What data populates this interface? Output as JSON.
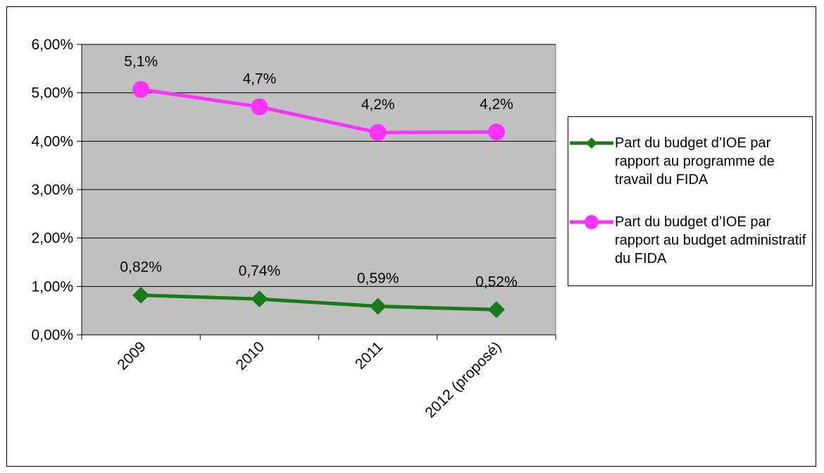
{
  "chart_data": {
    "type": "line",
    "categories": [
      "2009",
      "2010",
      "2011",
      "2012 (proposé)"
    ],
    "y_ticks": [
      "0,00%",
      "1,00%",
      "2,00%",
      "3,00%",
      "4,00%",
      "5,00%",
      "6,00%"
    ],
    "ylim": [
      0,
      6
    ],
    "grid": true,
    "legend_position": "right",
    "plot_background": "#c0c0c0",
    "series": [
      {
        "name": "Part du budget d’IOE par rapport au programme de travail du FIDA",
        "values": [
          0.82,
          0.74,
          0.59,
          0.52
        ],
        "labels": [
          "0,82%",
          "0,74%",
          "0,59%",
          "0,52%"
        ],
        "color": "#1a7a1a",
        "marker": "diamond"
      },
      {
        "name": "Part du budget d’IOE par rapport au budget administratif du FIDA",
        "values": [
          5.07,
          4.71,
          4.18,
          4.19
        ],
        "labels": [
          "5,1%",
          "4,7%",
          "4,2%",
          "4,2%"
        ],
        "color": "#ff33ff",
        "marker": "circle"
      }
    ]
  }
}
